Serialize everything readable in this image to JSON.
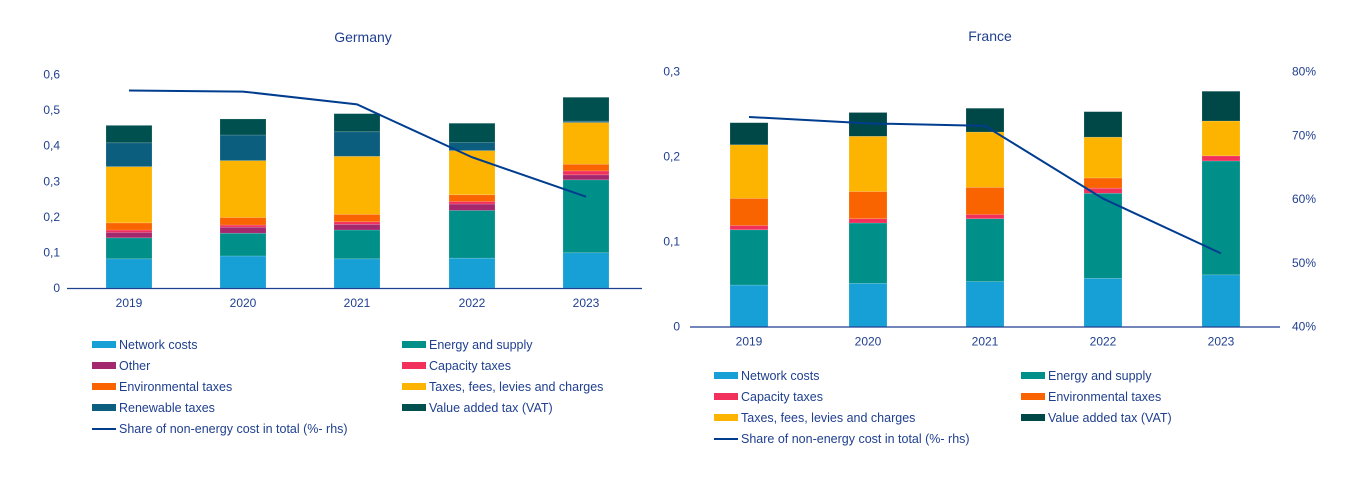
{
  "colors": {
    "network": "#16a0d5",
    "energy": "#009089",
    "other": "#a4286e",
    "capacity": "#f2305c",
    "environmental": "#fa6400",
    "taxes": "#fcb400",
    "renewable": "#0b5e7e",
    "vat": "#00504f",
    "line": "#003d8f",
    "text": "#1f3f8f"
  },
  "chart_data": [
    {
      "type": "bar",
      "stacked": true,
      "title": "Germany",
      "xlabel": "",
      "ylabel": "",
      "categories": [
        "2019",
        "2020",
        "2021",
        "2022",
        "2023"
      ],
      "ylim": [
        0,
        0.6
      ],
      "yticks": [
        "0",
        "0,1",
        "0,2",
        "0,3",
        "0,4",
        "0,5",
        "0,6"
      ],
      "rhs_axis_shown": false,
      "rhs_ylim_assumed": [
        40,
        80
      ],
      "series": [
        {
          "key": "network",
          "name": "Network costs",
          "values": [
            0.082,
            0.09,
            0.082,
            0.084,
            0.099
          ]
        },
        {
          "key": "energy",
          "name": "Energy and supply",
          "values": [
            0.059,
            0.064,
            0.081,
            0.134,
            0.205
          ]
        },
        {
          "key": "other",
          "name": "Other",
          "values": [
            0.015,
            0.017,
            0.016,
            0.018,
            0.014
          ]
        },
        {
          "key": "capacity",
          "name": "Capacity taxes",
          "values": [
            0.007,
            0.006,
            0.007,
            0.007,
            0.011
          ]
        },
        {
          "key": "environmental",
          "name": "Environmental taxes",
          "values": [
            0.02,
            0.021,
            0.021,
            0.019,
            0.019
          ]
        },
        {
          "key": "taxes",
          "name": "Taxes, fees, levies and charges",
          "values": [
            0.158,
            0.16,
            0.163,
            0.124,
            0.117
          ]
        },
        {
          "key": "renewable",
          "name": "Renewable taxes",
          "values": [
            0.067,
            0.072,
            0.069,
            0.023,
            0.004
          ]
        },
        {
          "key": "vat",
          "name": "Value added tax (VAT)",
          "values": [
            0.049,
            0.045,
            0.051,
            0.054,
            0.067
          ]
        }
      ],
      "line": {
        "name": "Share of non-energy cost in total (%- rhs)",
        "values": [
          77.0,
          76.8,
          74.4,
          64.5,
          57.1
        ]
      },
      "legend": {
        "placement": "bottom",
        "items": [
          {
            "key": "network",
            "label": "Network costs"
          },
          {
            "key": "energy",
            "label": "Energy and supply"
          },
          {
            "key": "other",
            "label": "Other"
          },
          {
            "key": "capacity",
            "label": "Capacity taxes"
          },
          {
            "key": "environmental",
            "label": "Environmental taxes"
          },
          {
            "key": "taxes",
            "label": "Taxes, fees, levies and charges"
          },
          {
            "key": "renewable",
            "label": "Renewable taxes"
          },
          {
            "key": "vat",
            "label": "Value added tax (VAT)"
          },
          {
            "key": "line",
            "label": "Share of non-energy cost in total (%- rhs)"
          }
        ]
      }
    },
    {
      "type": "bar",
      "stacked": true,
      "title": "France",
      "xlabel": "",
      "ylabel": "",
      "categories": [
        "2019",
        "2020",
        "2021",
        "2022",
        "2023"
      ],
      "ylim": [
        0,
        0.3
      ],
      "yticks": [
        "0",
        "0,1",
        "0,2",
        "0,3"
      ],
      "rhs_axis_shown": true,
      "rhs_ylim": [
        40,
        80
      ],
      "rhs_ticks": [
        "40%",
        "50%",
        "60%",
        "70%",
        "80%"
      ],
      "series": [
        {
          "key": "network",
          "name": "Network costs",
          "values": [
            0.049,
            0.051,
            0.053,
            0.057,
            0.061
          ]
        },
        {
          "key": "energy",
          "name": "Energy and supply",
          "values": [
            0.065,
            0.071,
            0.074,
            0.1,
            0.134
          ]
        },
        {
          "key": "capacity",
          "name": "Capacity taxes",
          "values": [
            0.005,
            0.005,
            0.005,
            0.006,
            0.006
          ]
        },
        {
          "key": "environmental",
          "name": "Environmental taxes",
          "values": [
            0.032,
            0.032,
            0.032,
            0.012,
            0.0
          ]
        },
        {
          "key": "taxes",
          "name": "Taxes, fees, levies and charges",
          "values": [
            0.063,
            0.065,
            0.065,
            0.048,
            0.041
          ]
        },
        {
          "key": "vat",
          "name": "Value added tax (VAT)",
          "values": [
            0.026,
            0.028,
            0.028,
            0.03,
            0.035
          ]
        }
      ],
      "line": {
        "name": "Share of non-energy cost in total (%- rhs)",
        "values": [
          72.9,
          71.9,
          71.5,
          60.1,
          51.5
        ]
      },
      "legend": {
        "placement": "bottom",
        "items": [
          {
            "key": "network",
            "label": "Network costs"
          },
          {
            "key": "energy",
            "label": "Energy and supply"
          },
          {
            "key": "capacity",
            "label": "Capacity taxes"
          },
          {
            "key": "environmental",
            "label": "Environmental taxes"
          },
          {
            "key": "taxes",
            "label": "Taxes, fees, levies and charges"
          },
          {
            "key": "vat",
            "label": "Value added tax (VAT)"
          },
          {
            "key": "line",
            "label": "Share of non-energy cost in total (%- rhs)"
          }
        ]
      }
    }
  ]
}
